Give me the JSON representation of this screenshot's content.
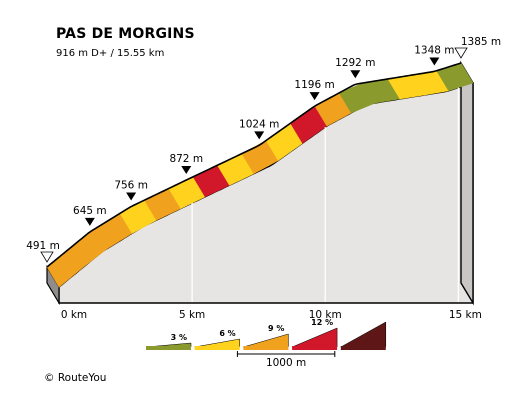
{
  "header": {
    "title": "PAS DE MORGINS",
    "subtitle": "916 m D+ / 15.55 km"
  },
  "footer": {
    "copyright": "©  RouteYou"
  },
  "colors": {
    "grade_0_3": "#8a9a2c",
    "grade_3_6": "#ffd21e",
    "grade_6_9": "#f0a21e",
    "grade_9_12": "#d0182a",
    "grade_12_plus": "#5e1616",
    "wall": "#e7e5e4",
    "side": "#c9c7c6"
  },
  "chart_data": {
    "type": "area",
    "title": "PAS DE MORGINS",
    "subtitle": "916 m D+ / 15.55 km",
    "x_unit": "km",
    "y_unit": "m",
    "xlim": [
      0,
      15.55
    ],
    "distance_ticks": [
      {
        "km": 0,
        "label": "0 km"
      },
      {
        "km": 5,
        "label": "5 km"
      },
      {
        "km": 10,
        "label": "10 km"
      },
      {
        "km": 15,
        "label": "15 km"
      }
    ],
    "elevation_labels": [
      {
        "km": 0,
        "elev": 491,
        "label": "491 m",
        "marker": "start"
      },
      {
        "km": 1.61,
        "elev": 645,
        "label": "645 m",
        "marker": "km"
      },
      {
        "km": 3.16,
        "elev": 756,
        "label": "756 m",
        "marker": "km"
      },
      {
        "km": 5.23,
        "elev": 872,
        "label": "872 m",
        "marker": "km"
      },
      {
        "km": 7.97,
        "elev": 1024,
        "label": "1024 m",
        "marker": "km"
      },
      {
        "km": 10.05,
        "elev": 1196,
        "label": "1196 m",
        "marker": "km"
      },
      {
        "km": 11.58,
        "elev": 1292,
        "label": "1292 m",
        "marker": "km"
      },
      {
        "km": 14.55,
        "elev": 1348,
        "label": "1348 m",
        "marker": "km"
      },
      {
        "km": 15.55,
        "elev": 1385,
        "label": "1385 m",
        "marker": "end"
      }
    ],
    "segments": [
      {
        "grade": "6-9"
      },
      {
        "grade": "6-9"
      },
      {
        "grade": "6-9"
      },
      {
        "grade": "3-6"
      },
      {
        "grade": "6-9"
      },
      {
        "grade": "3-6"
      },
      {
        "grade": "9-12"
      },
      {
        "grade": "3-6"
      },
      {
        "grade": "6-9"
      },
      {
        "grade": "3-6"
      },
      {
        "grade": "9-12"
      },
      {
        "grade": "6-9"
      },
      {
        "grade": "0-3"
      },
      {
        "grade": "0-3"
      },
      {
        "grade": "3-6"
      },
      {
        "grade": "3-6"
      },
      {
        "grade": "0-3"
      }
    ],
    "legend": {
      "items": [
        {
          "grade": "0-3",
          "label": "3 %"
        },
        {
          "grade": "3-6",
          "label": "6 %"
        },
        {
          "grade": "6-9",
          "label": "9 %"
        },
        {
          "grade": "9-12",
          "label": "12 %"
        },
        {
          "grade": "12+",
          "label": ""
        }
      ],
      "scale_label": "1000 m"
    }
  }
}
